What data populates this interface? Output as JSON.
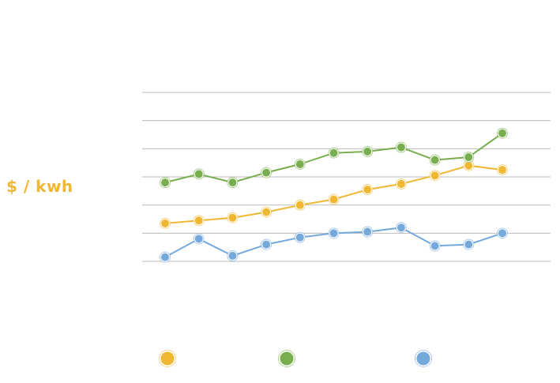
{
  "chart_data": {
    "type": "line",
    "title": "",
    "xlabel": "",
    "ylabel": "$ / kwh",
    "grid": true,
    "legend_position": "bottom",
    "x": [
      1,
      2,
      3,
      4,
      5,
      6,
      7,
      8,
      9,
      10,
      11
    ],
    "ylim": [
      0,
      6
    ],
    "series": [
      {
        "color": "#f0b832",
        "values": [
          1.35,
          1.45,
          1.55,
          1.75,
          2.0,
          2.2,
          2.55,
          2.75,
          3.05,
          3.4,
          3.25
        ]
      },
      {
        "color": "#79ae4e",
        "values": [
          2.8,
          3.1,
          2.8,
          3.15,
          3.45,
          3.85,
          3.9,
          4.05,
          3.6,
          3.7,
          4.55
        ]
      },
      {
        "color": "#75a9dc",
        "values": [
          0.15,
          0.8,
          0.2,
          0.6,
          0.85,
          1.0,
          1.05,
          1.2,
          0.55,
          0.6,
          1.0
        ]
      }
    ]
  }
}
